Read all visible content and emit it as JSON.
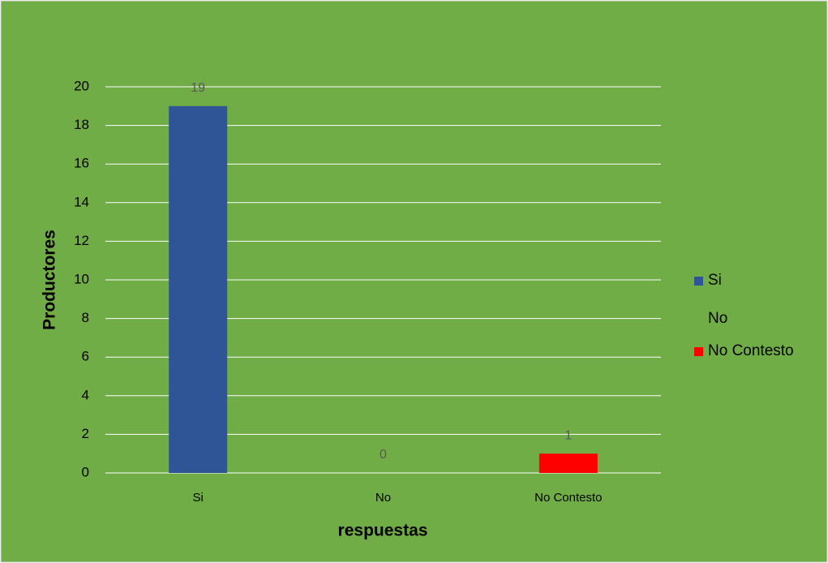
{
  "chart_data": {
    "type": "bar",
    "categories": [
      "Si",
      "No",
      "No Contesto"
    ],
    "values": [
      19,
      0,
      1
    ],
    "colors": [
      "#2F5597",
      "#70AD47",
      "#FF0000"
    ],
    "xlabel": "respuestas",
    "ylabel": "Productores",
    "ylim": [
      0,
      20
    ],
    "yticks": [
      0,
      2,
      4,
      6,
      8,
      10,
      12,
      14,
      16,
      18,
      20
    ],
    "grid": true,
    "legend": "right",
    "data_labels": true
  }
}
